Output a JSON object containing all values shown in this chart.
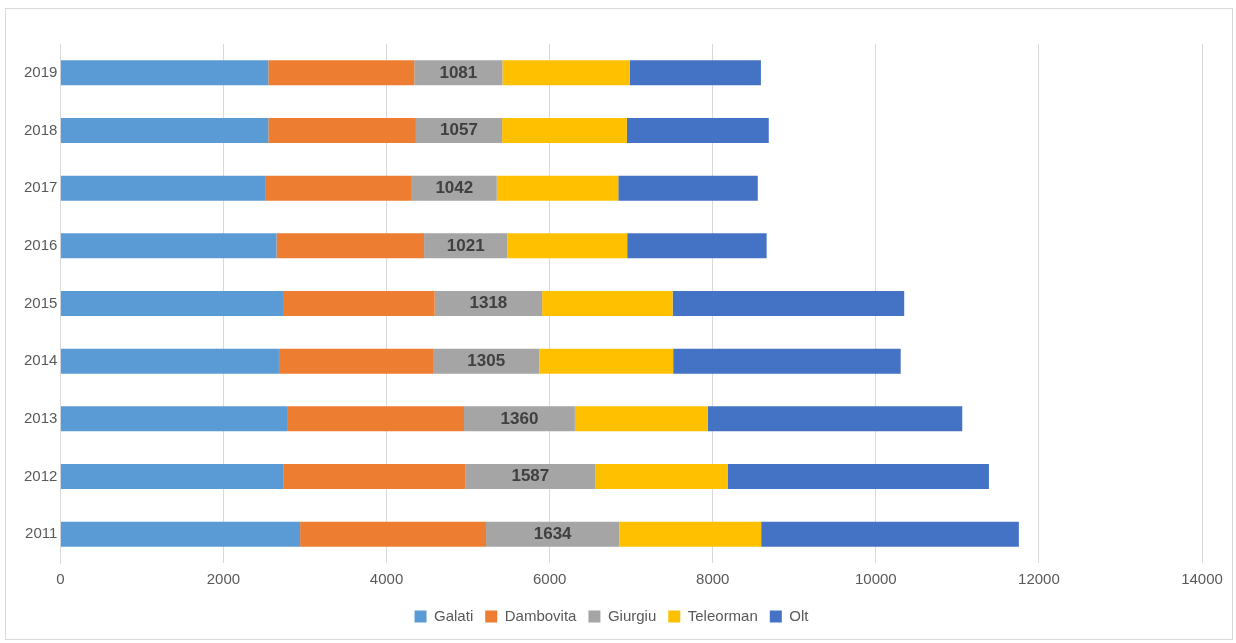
{
  "chart_data": {
    "type": "bar",
    "orientation": "horizontal",
    "stacked": true,
    "categories": [
      "2019",
      "2018",
      "2017",
      "2016",
      "2015",
      "2014",
      "2013",
      "2012",
      "2011"
    ],
    "series": [
      {
        "name": "Galati",
        "color": "#5b9bd5",
        "values": [
          2550,
          2550,
          2520,
          2650,
          2730,
          2680,
          2790,
          2740,
          2940
        ]
      },
      {
        "name": "Dambovita",
        "color": "#ed7d31",
        "values": [
          1790,
          1810,
          1790,
          1810,
          1860,
          1890,
          2160,
          2230,
          2280
        ]
      },
      {
        "name": "Giurgiu",
        "color": "#a5a5a5",
        "values": [
          1081,
          1057,
          1042,
          1021,
          1318,
          1305,
          1360,
          1587,
          1634
        ],
        "value_labels": [
          "1081",
          "1057",
          "1042",
          "1021",
          "1318",
          "1305",
          "1360",
          "1587",
          "1634"
        ]
      },
      {
        "name": "Teleorman",
        "color": "#ffc000",
        "values": [
          1560,
          1530,
          1490,
          1470,
          1600,
          1640,
          1630,
          1630,
          1740
        ]
      },
      {
        "name": "Olt",
        "color": "#4472c4",
        "values": [
          1610,
          1740,
          1710,
          1710,
          2840,
          2790,
          3120,
          3200,
          3160
        ]
      }
    ],
    "xlim": [
      0,
      14000
    ],
    "xticks": [
      0,
      2000,
      4000,
      6000,
      8000,
      10000,
      12000,
      14000
    ],
    "grid": "x",
    "legend": "bottom"
  }
}
